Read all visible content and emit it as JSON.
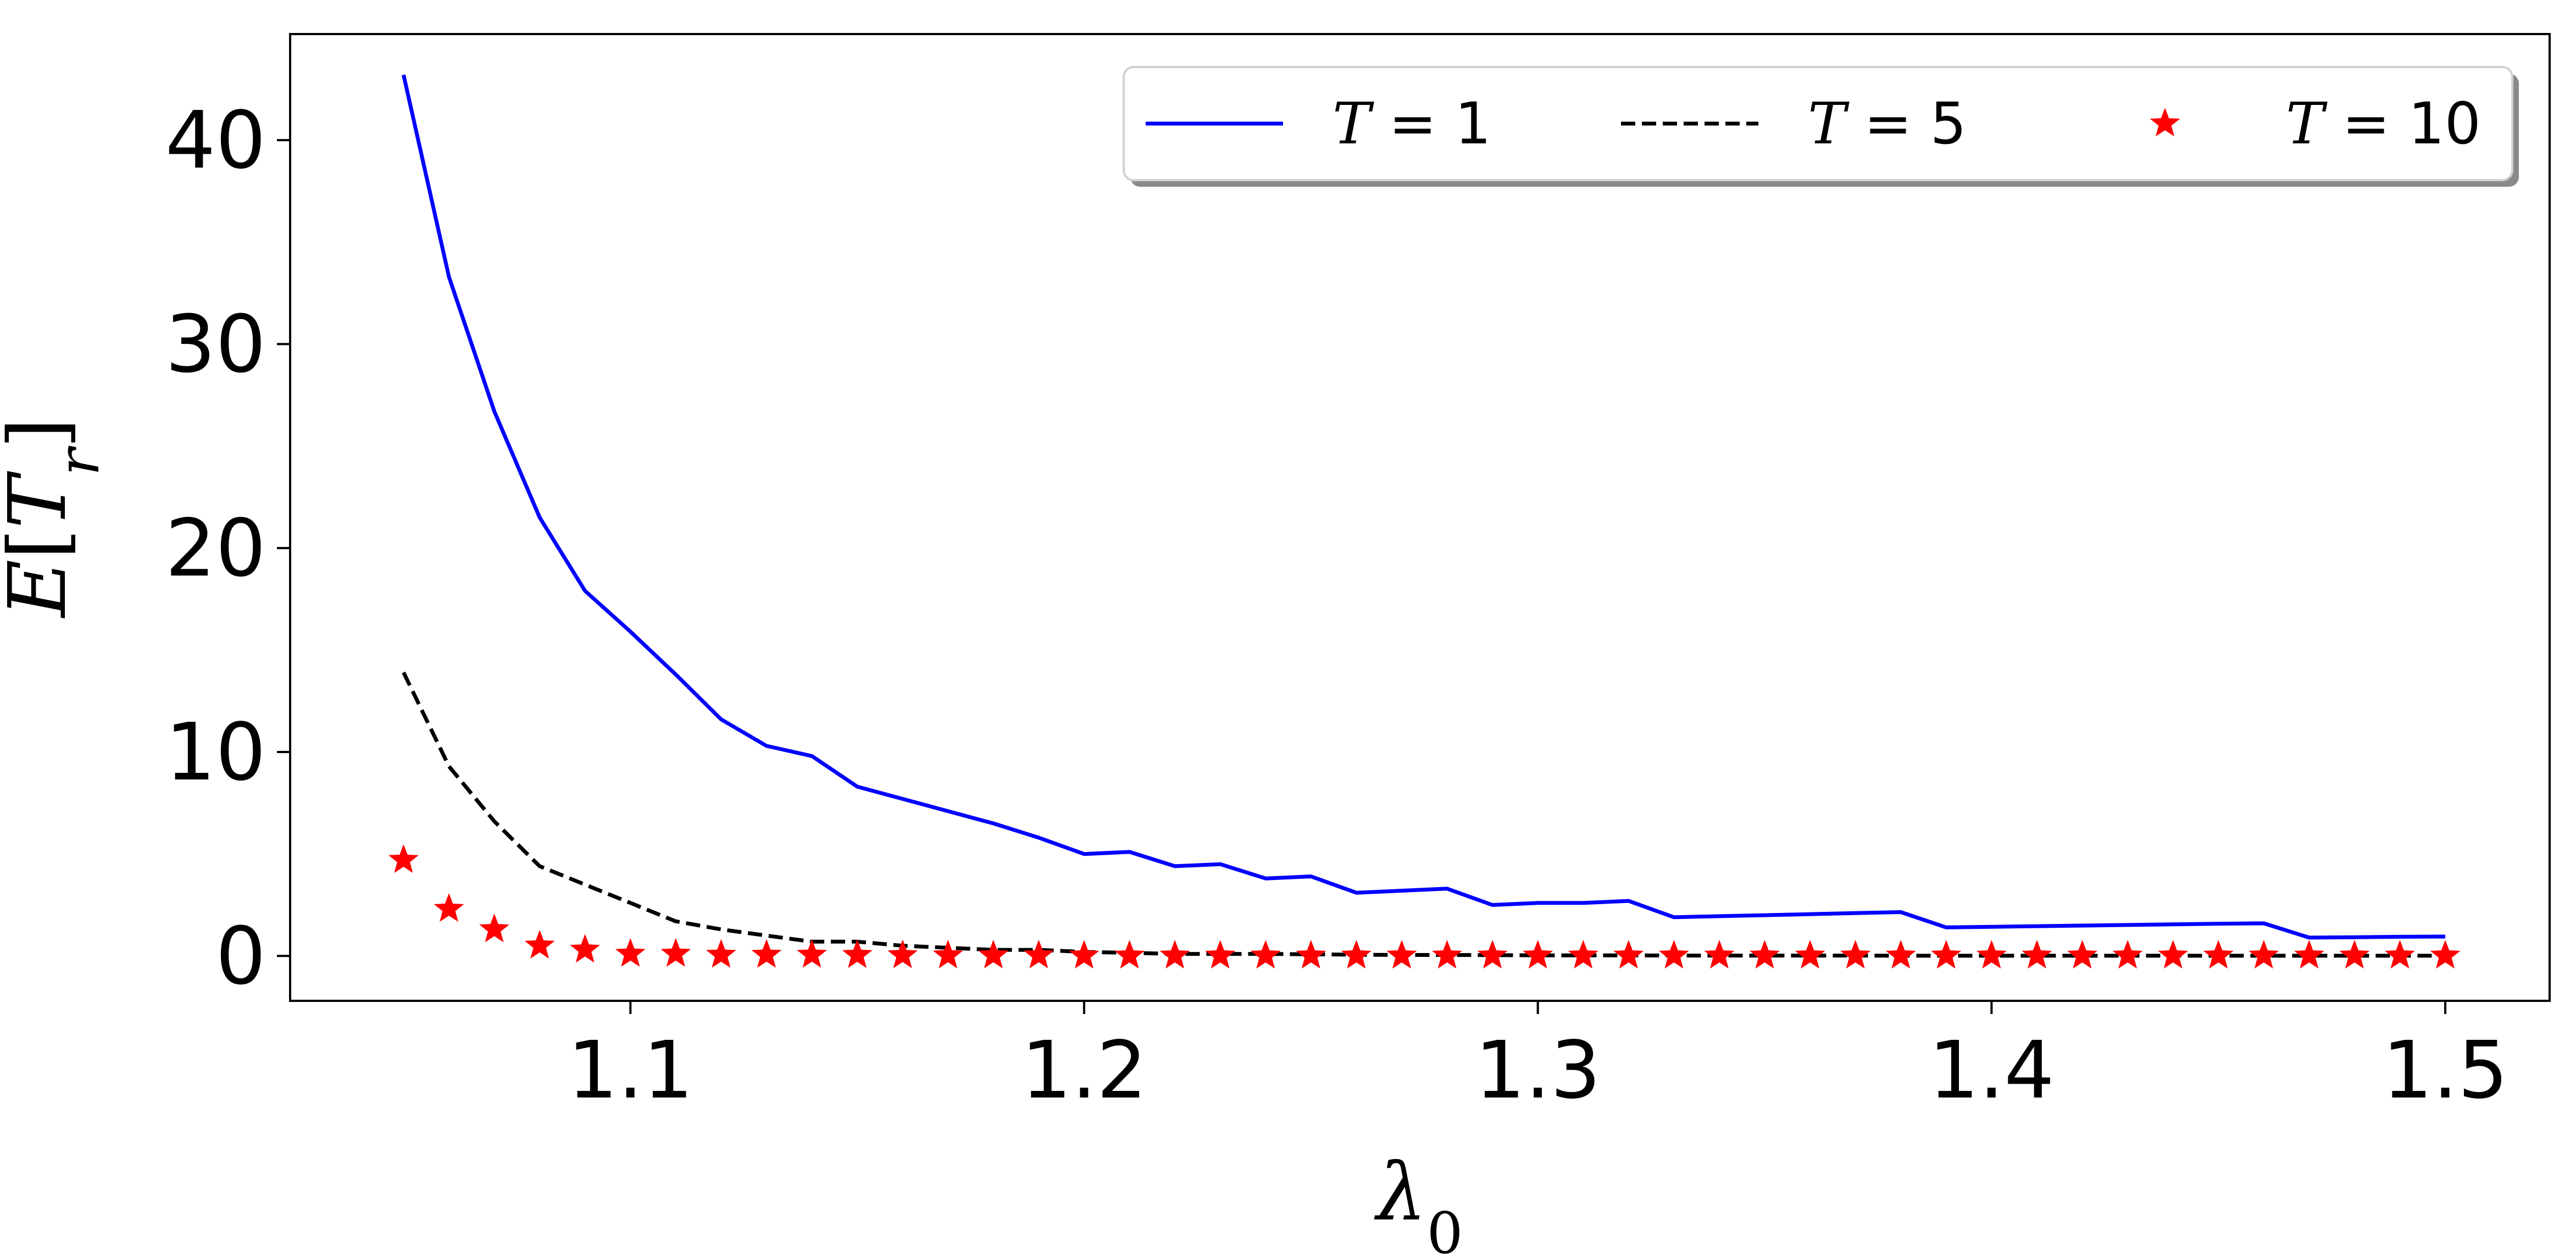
{
  "chart_data": {
    "type": "line",
    "title": "",
    "xlabel_parts": [
      {
        "text": "λ",
        "italic": true,
        "sub": false
      },
      {
        "text": "0",
        "italic": false,
        "sub": true
      }
    ],
    "ylabel_parts": [
      {
        "text": "E",
        "italic": true,
        "sub": false
      },
      {
        "text": "[",
        "italic": false,
        "sub": false
      },
      {
        "text": "T",
        "italic": true,
        "sub": false
      },
      {
        "text": "r",
        "italic": true,
        "sub": true
      },
      {
        "text": "]",
        "italic": false,
        "sub": false
      }
    ],
    "xlim": [
      1.025,
      1.523
    ],
    "ylim": [
      -2.2,
      45.2
    ],
    "xticks": [
      1.1,
      1.2,
      1.3,
      1.4,
      1.5
    ],
    "xtick_labels": [
      "1.1",
      "1.2",
      "1.3",
      "1.4",
      "1.5"
    ],
    "yticks": [
      0,
      10,
      20,
      30,
      40
    ],
    "ytick_labels": [
      "0",
      "10",
      "20",
      "30",
      "40"
    ],
    "grid": false,
    "legend_placement": "top-right",
    "x": [
      1.05,
      1.06,
      1.07,
      1.08,
      1.09,
      1.1,
      1.11,
      1.12,
      1.13,
      1.14,
      1.15,
      1.16,
      1.17,
      1.18,
      1.19,
      1.2,
      1.21,
      1.22,
      1.23,
      1.24,
      1.25,
      1.26,
      1.27,
      1.28,
      1.29,
      1.3,
      1.31,
      1.32,
      1.33,
      1.34,
      1.35,
      1.36,
      1.37,
      1.38,
      1.39,
      1.4,
      1.41,
      1.42,
      1.43,
      1.44,
      1.45,
      1.46,
      1.47,
      1.48,
      1.49,
      1.5
    ],
    "series": [
      {
        "name_parts": [
          {
            "text": "T",
            "italic": true
          },
          {
            "text": " = 1",
            "italic": false
          }
        ],
        "style": "solid",
        "color": "#0000ff",
        "values": [
          43.2,
          33.3,
          26.7,
          21.5,
          17.9,
          15.9,
          13.8,
          11.6,
          10.3,
          9.8,
          8.3,
          7.7,
          7.1,
          6.5,
          5.8,
          5.0,
          5.1,
          4.4,
          4.5,
          3.8,
          3.9,
          3.1,
          3.2,
          3.3,
          2.5,
          2.6,
          2.6,
          2.7,
          1.9,
          1.95,
          2.0,
          2.05,
          2.1,
          2.15,
          1.4,
          1.43,
          1.46,
          1.49,
          1.52,
          1.55,
          1.58,
          1.6,
          0.9,
          0.92,
          0.94,
          0.95
        ]
      },
      {
        "name_parts": [
          {
            "text": "T",
            "italic": true
          },
          {
            "text": " = 5",
            "italic": false
          }
        ],
        "style": "dashed",
        "color": "#000000",
        "values": [
          13.9,
          9.3,
          6.6,
          4.4,
          3.5,
          2.6,
          1.7,
          1.3,
          1.0,
          0.7,
          0.7,
          0.5,
          0.4,
          0.3,
          0.3,
          0.2,
          0.15,
          0.1,
          0.1,
          0.1,
          0.08,
          0.06,
          0.05,
          0.05,
          0.04,
          0.03,
          0.03,
          0.03,
          0.02,
          0.02,
          0.02,
          0.02,
          0.02,
          0.01,
          0.01,
          0.01,
          0.01,
          0.01,
          0.01,
          0.01,
          0.01,
          0.01,
          0.01,
          0.01,
          0.01,
          0.01
        ]
      },
      {
        "name_parts": [
          {
            "text": "T",
            "italic": true
          },
          {
            "text": " = 10",
            "italic": false
          }
        ],
        "style": "markers",
        "color": "#ff0000",
        "values": [
          4.7,
          2.3,
          1.3,
          0.5,
          0.3,
          0.1,
          0.1,
          0.05,
          0.05,
          0.05,
          0.04,
          0.03,
          0.02,
          0.02,
          0.02,
          0.01,
          0.01,
          0.01,
          0.01,
          0.01,
          0.01,
          0.01,
          0.01,
          0.01,
          0.01,
          0.01,
          0.01,
          0.01,
          0.01,
          0.01,
          0.01,
          0.01,
          0.01,
          0.01,
          0.01,
          0.01,
          0.01,
          0.01,
          0.01,
          0.01,
          0.01,
          0.01,
          0.01,
          0.01,
          0.01,
          0.01
        ]
      }
    ]
  }
}
